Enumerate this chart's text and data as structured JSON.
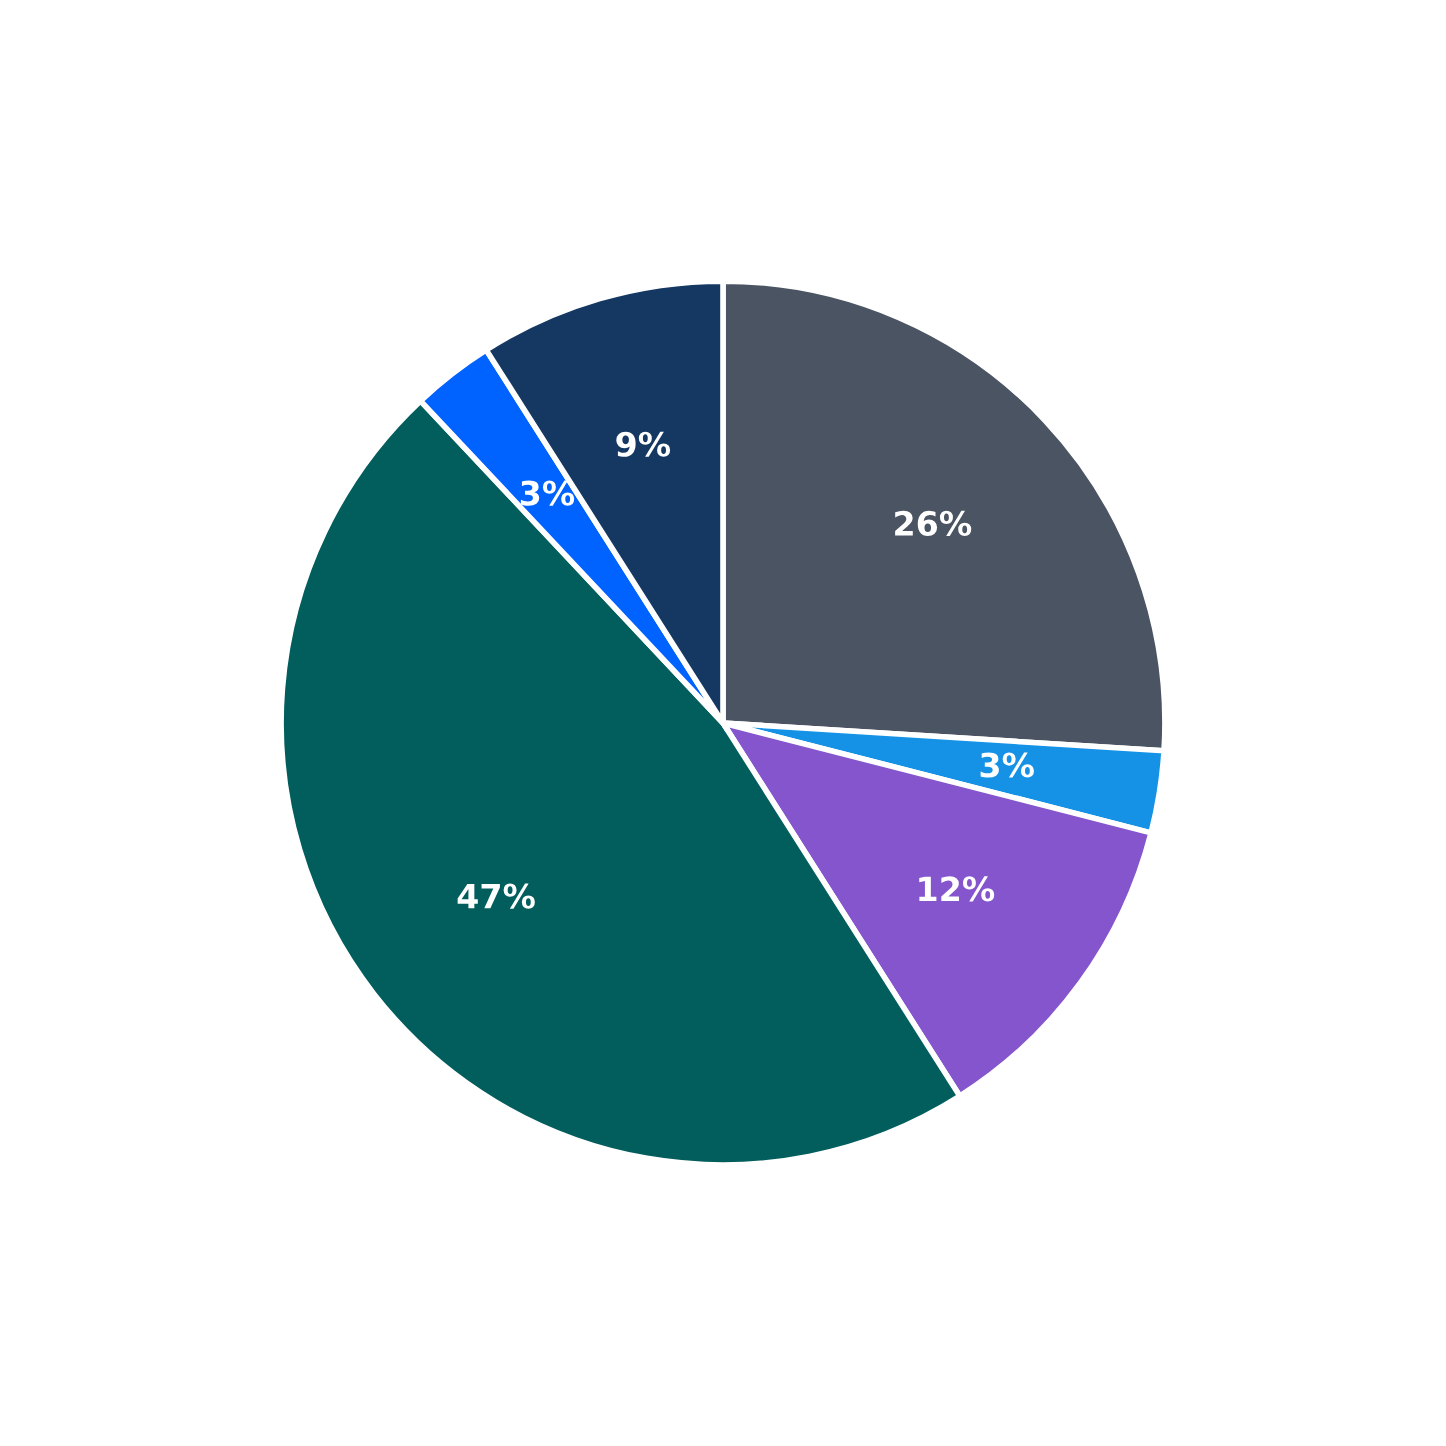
{
  "chart_data": {
    "type": "pie",
    "categories": [
      null,
      null,
      null,
      null,
      null,
      null
    ],
    "values": [
      26,
      3,
      12,
      47,
      3,
      9
    ],
    "colors": [
      "#4a5462",
      "#1592e6",
      "#8455cc",
      "#025e5c",
      "#0062ff",
      "#143862"
    ],
    "value_labels": [
      "26%",
      "3%",
      "12%",
      "47%",
      "3%",
      "9%"
    ]
  }
}
